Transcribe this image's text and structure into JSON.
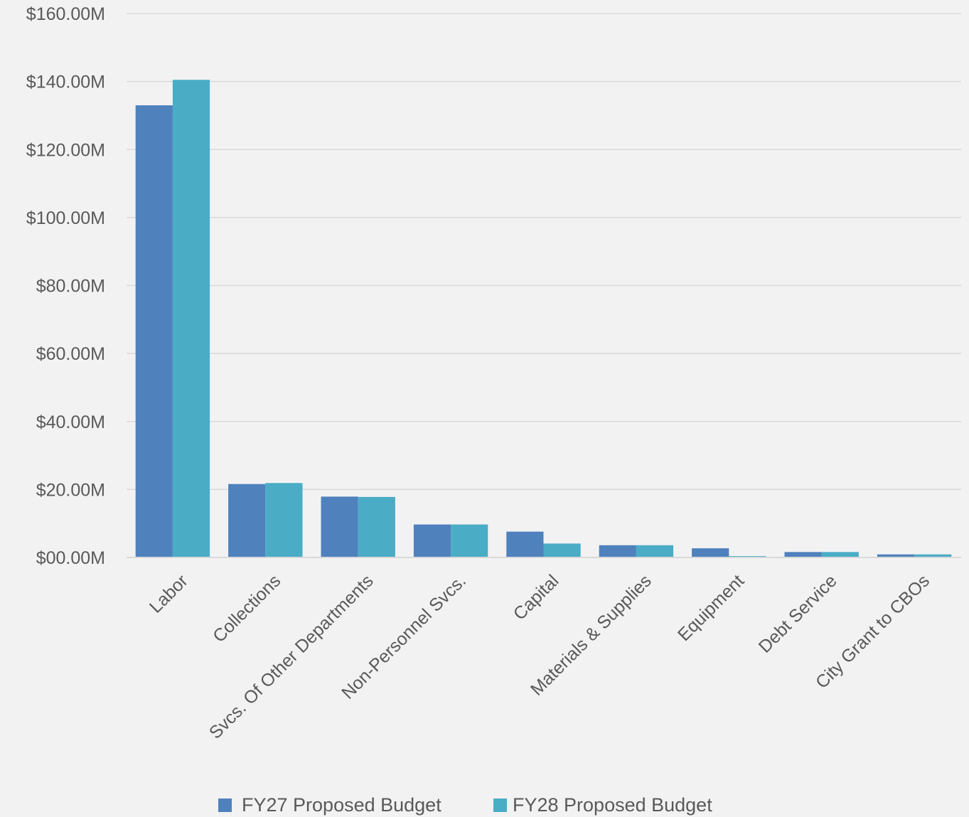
{
  "chart_data": {
    "type": "bar",
    "title": "",
    "xlabel": "",
    "ylabel": "",
    "ylim": [
      0,
      160
    ],
    "yticks": [
      0,
      20,
      40,
      60,
      80,
      100,
      120,
      140,
      160
    ],
    "ytick_labels": [
      "$00.00M",
      "$20.00M",
      "$40.00M",
      "$60.00M",
      "$80.00M",
      "$100.00M",
      "$120.00M",
      "$140.00M",
      "$160.00M"
    ],
    "unit": "$M",
    "grid": true,
    "legend_position": "bottom",
    "categories": [
      "Labor",
      "Collections",
      "Svcs. Of Other Departments",
      "Non-Personnel Svcs.",
      "Capital",
      "Materials & Supplies",
      "Equipment",
      "Debt Service",
      "City Grant to CBOs"
    ],
    "series": [
      {
        "name": "FY27 Proposed Budget",
        "color": "#4f81bd",
        "values": [
          133.0,
          21.6,
          17.9,
          9.7,
          7.6,
          3.6,
          2.7,
          1.6,
          0.9
        ]
      },
      {
        "name": "FY28 Proposed Budget",
        "color": "#4bacc6",
        "values": [
          140.5,
          21.9,
          17.8,
          9.7,
          4.1,
          3.6,
          0.4,
          1.6,
          0.9
        ]
      }
    ]
  }
}
